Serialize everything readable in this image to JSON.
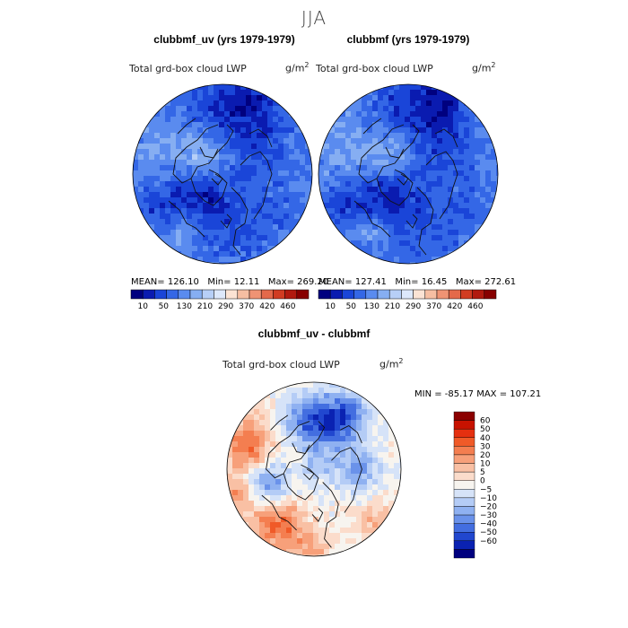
{
  "figure": {
    "suptitle": "JJA"
  },
  "panels": [
    {
      "title": "clubbmf_uv (yrs 1979-1979)",
      "subtitle": "Total grd-box cloud LWP",
      "units": "g/m",
      "units_exp": "2",
      "mean_label": "MEAN=",
      "mean": "126.10",
      "min_label": "Min=",
      "min": "12.11",
      "max_label": "Max=",
      "max": "269.20"
    },
    {
      "title": "clubbmf (yrs 1979-1979)",
      "subtitle": "Total grd-box cloud LWP",
      "units": "g/m",
      "units_exp": "2",
      "mean_label": "MEAN=",
      "mean": "127.41",
      "min_label": "Min=",
      "min": "16.45",
      "max_label": "Max=",
      "max": "272.61"
    },
    {
      "title": "clubbmf_uv - clubbmf",
      "subtitle": "Total grd-box cloud LWP",
      "units": "g/m",
      "units_exp": "2",
      "minmax_text": "MIN = -85.17  MAX = 107.21"
    }
  ],
  "chart_data": [
    {
      "type": "heatmap",
      "projection": "polar stereographic (north pole)",
      "title": "clubbmf_uv (yrs 1979-1979)",
      "variable": "Total grd-box cloud LWP",
      "units": "g/m2",
      "mean": 126.1,
      "min": 12.11,
      "max": 269.2,
      "colorbar": {
        "orientation": "horizontal",
        "tick_labels": [
          "10",
          "50",
          "130",
          "210",
          "290",
          "370",
          "420",
          "460"
        ],
        "colors": [
          "#00007f",
          "#0a1bb0",
          "#1a45d8",
          "#3467e6",
          "#5a8bef",
          "#86aef2",
          "#b7cff7",
          "#dde8fb",
          "#fbe3d4",
          "#f6bea2",
          "#ef9374",
          "#e4694a",
          "#d13c22",
          "#b11a0f",
          "#870000"
        ]
      }
    },
    {
      "type": "heatmap",
      "projection": "polar stereographic (north pole)",
      "title": "clubbmf (yrs 1979-1979)",
      "variable": "Total grd-box cloud LWP",
      "units": "g/m2",
      "mean": 127.41,
      "min": 16.45,
      "max": 272.61,
      "colorbar": {
        "orientation": "horizontal",
        "tick_labels": [
          "10",
          "50",
          "130",
          "210",
          "290",
          "370",
          "420",
          "460"
        ],
        "colors": [
          "#00007f",
          "#0a1bb0",
          "#1a45d8",
          "#3467e6",
          "#5a8bef",
          "#86aef2",
          "#b7cff7",
          "#dde8fb",
          "#fbe3d4",
          "#f6bea2",
          "#ef9374",
          "#e4694a",
          "#d13c22",
          "#b11a0f",
          "#870000"
        ]
      }
    },
    {
      "type": "heatmap",
      "projection": "polar stereographic (north pole)",
      "title": "clubbmf_uv - clubbmf",
      "variable": "Total grd-box cloud LWP",
      "units": "g/m2",
      "min": -85.17,
      "max": 107.21,
      "colorbar": {
        "orientation": "vertical",
        "tick_labels": [
          "60",
          "50",
          "40",
          "30",
          "20",
          "10",
          "5",
          "0",
          "−5",
          "−10",
          "−20",
          "−30",
          "−40",
          "−50",
          "−60"
        ],
        "colors": [
          "#8b0000",
          "#c81200",
          "#e53010",
          "#f05a28",
          "#f47e50",
          "#f7a07a",
          "#f9c0a4",
          "#fbdccb",
          "#f7f4ef",
          "#d6e3f8",
          "#b4ccf6",
          "#8fb1f1",
          "#6a92ea",
          "#436ee0",
          "#2147cf",
          "#0a22b2",
          "#00007f"
        ]
      }
    }
  ]
}
